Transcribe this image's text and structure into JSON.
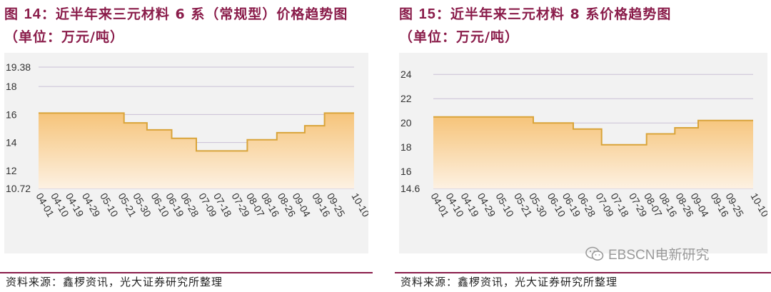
{
  "colors": {
    "title": "#8a1c4a",
    "line": "#d9a43a",
    "fill_top": "#f6c47a",
    "fill_bottom": "#fdf1e2",
    "grid": "#c9c0d6",
    "plot_bg": "#f2f2f2"
  },
  "left": {
    "title_prefix": "图",
    "fig_no": "14",
    "title_rest": "：近半年来三元材料 6 系（常规型）价格趋势图",
    "unit": "（单位：万元/吨）",
    "source": "资料来源：鑫椤资讯，光大证券研究所整理"
  },
  "right": {
    "title_prefix": "图",
    "fig_no": "15",
    "title_rest": "：近半年来三元材料 8 系价格趋势图",
    "unit": "（单位：万元/吨）",
    "source": "资料来源：鑫椤资讯，光大证券研究所整理"
  },
  "watermark": {
    "icon": "wechat-icon",
    "text": "EBSCN电新研究"
  },
  "chart_data": [
    {
      "type": "area",
      "title": "近半年来三元材料 6 系（常规型）价格趋势图",
      "ylabel": "万元/吨",
      "ylim": [
        10.72,
        19.38
      ],
      "yticks": [
        10.72,
        12,
        14,
        16,
        18,
        19.38
      ],
      "x_ticks": [
        "04-01",
        "04-10",
        "04-19",
        "04-29",
        "05-10",
        "05-21",
        "05-30",
        "06-10",
        "06-19",
        "06-28",
        "07-09",
        "07-18",
        "07-29",
        "08-07",
        "08-16",
        "08-26",
        "09-04",
        "09-16",
        "09-25",
        "10-10"
      ],
      "steps": [
        {
          "from": "04-01",
          "value": 16.1
        },
        {
          "from": "05-23",
          "value": 15.4
        },
        {
          "from": "06-06",
          "value": 14.9
        },
        {
          "from": "06-21",
          "value": 14.3
        },
        {
          "from": "07-06",
          "value": 13.4
        },
        {
          "from": "08-06",
          "value": 14.2
        },
        {
          "from": "08-24",
          "value": 14.7
        },
        {
          "from": "09-10",
          "value": 15.2
        },
        {
          "from": "09-22",
          "value": 16.1
        }
      ],
      "end": "10-10",
      "grid": true
    },
    {
      "type": "area",
      "title": "近半年来三元材料 8 系价格趋势图",
      "ylabel": "万元/吨",
      "ylim": [
        14.6,
        24.6
      ],
      "yticks": [
        14.6,
        16,
        18,
        20,
        22,
        24
      ],
      "x_ticks": [
        "04-01",
        "04-10",
        "04-19",
        "04-29",
        "05-10",
        "05-21",
        "05-30",
        "06-10",
        "06-19",
        "06-28",
        "07-09",
        "07-18",
        "07-29",
        "08-07",
        "08-16",
        "08-26",
        "09-04",
        "09-16",
        "09-25",
        "10-10"
      ],
      "steps": [
        {
          "from": "04-01",
          "value": 20.5
        },
        {
          "from": "05-31",
          "value": 20.0
        },
        {
          "from": "06-24",
          "value": 19.5
        },
        {
          "from": "07-11",
          "value": 18.2
        },
        {
          "from": "08-07",
          "value": 19.1
        },
        {
          "from": "08-24",
          "value": 19.6
        },
        {
          "from": "09-07",
          "value": 20.2
        }
      ],
      "end": "10-10",
      "grid": true
    }
  ]
}
